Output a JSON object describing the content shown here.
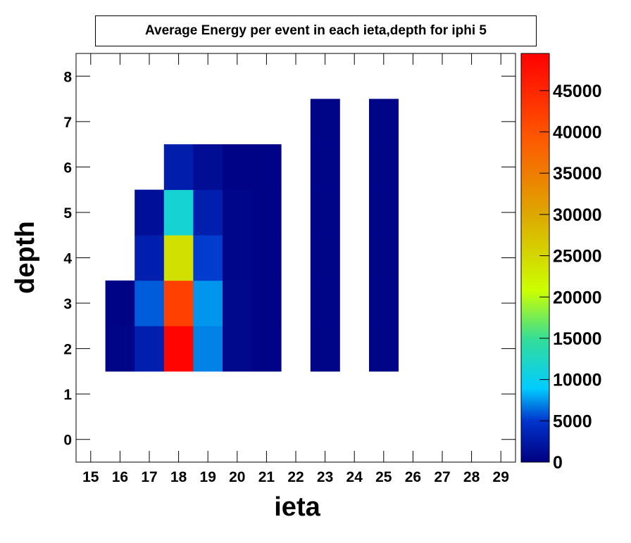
{
  "chart_data": {
    "type": "heatmap",
    "title": "Average Energy per event in each ieta,depth for iphi 5",
    "xlabel": "ieta",
    "ylabel": "depth",
    "xlim": [
      14.5,
      29.5
    ],
    "ylim": [
      -0.5,
      8.5
    ],
    "x_ticks": [
      15,
      16,
      17,
      18,
      19,
      20,
      21,
      22,
      23,
      24,
      25,
      26,
      27,
      28,
      29
    ],
    "y_ticks": [
      0,
      1,
      2,
      3,
      4,
      5,
      6,
      7,
      8
    ],
    "colorbar": {
      "min": 0,
      "max": 49500,
      "ticks": [
        0,
        5000,
        10000,
        15000,
        20000,
        25000,
        30000,
        35000,
        40000,
        45000
      ]
    },
    "cells": [
      {
        "ieta": 16,
        "depth": 2,
        "value": 500
      },
      {
        "ieta": 16,
        "depth": 3,
        "value": 300
      },
      {
        "ieta": 17,
        "depth": 2,
        "value": 3000
      },
      {
        "ieta": 17,
        "depth": 3,
        "value": 6000
      },
      {
        "ieta": 17,
        "depth": 4,
        "value": 3000
      },
      {
        "ieta": 17,
        "depth": 5,
        "value": 1500
      },
      {
        "ieta": 18,
        "depth": 2,
        "value": 49000
      },
      {
        "ieta": 18,
        "depth": 3,
        "value": 42000
      },
      {
        "ieta": 18,
        "depth": 4,
        "value": 24000
      },
      {
        "ieta": 18,
        "depth": 5,
        "value": 11500
      },
      {
        "ieta": 18,
        "depth": 6,
        "value": 2800
      },
      {
        "ieta": 19,
        "depth": 2,
        "value": 7000
      },
      {
        "ieta": 19,
        "depth": 3,
        "value": 7500
      },
      {
        "ieta": 19,
        "depth": 4,
        "value": 5200
      },
      {
        "ieta": 19,
        "depth": 5,
        "value": 3000
      },
      {
        "ieta": 19,
        "depth": 6,
        "value": 1300
      },
      {
        "ieta": 20,
        "depth": 2,
        "value": 800
      },
      {
        "ieta": 20,
        "depth": 3,
        "value": 800
      },
      {
        "ieta": 20,
        "depth": 4,
        "value": 600
      },
      {
        "ieta": 20,
        "depth": 5,
        "value": 600
      },
      {
        "ieta": 20,
        "depth": 6,
        "value": 300
      },
      {
        "ieta": 21,
        "depth": 2,
        "value": 300
      },
      {
        "ieta": 21,
        "depth": 3,
        "value": 300
      },
      {
        "ieta": 21,
        "depth": 4,
        "value": 300
      },
      {
        "ieta": 21,
        "depth": 5,
        "value": 300
      },
      {
        "ieta": 21,
        "depth": 6,
        "value": 300
      },
      {
        "ieta": 23,
        "depth": 2,
        "value": 500
      },
      {
        "ieta": 23,
        "depth": 3,
        "value": 500
      },
      {
        "ieta": 23,
        "depth": 4,
        "value": 500
      },
      {
        "ieta": 23,
        "depth": 5,
        "value": 500
      },
      {
        "ieta": 23,
        "depth": 6,
        "value": 500
      },
      {
        "ieta": 23,
        "depth": 7,
        "value": 500
      },
      {
        "ieta": 25,
        "depth": 2,
        "value": 500
      },
      {
        "ieta": 25,
        "depth": 3,
        "value": 500
      },
      {
        "ieta": 25,
        "depth": 4,
        "value": 500
      },
      {
        "ieta": 25,
        "depth": 5,
        "value": 500
      },
      {
        "ieta": 25,
        "depth": 6,
        "value": 500
      },
      {
        "ieta": 25,
        "depth": 7,
        "value": 500
      }
    ]
  }
}
